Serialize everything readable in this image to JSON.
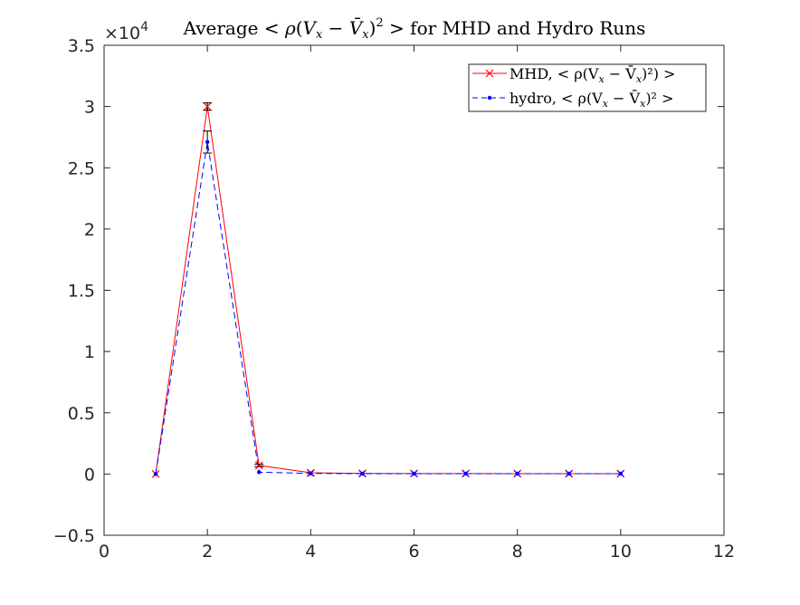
{
  "chart_data": {
    "type": "line",
    "title": "Average < ρ(V_x − V̄_x)² > for MHD and Hydro Runs",
    "title_parts": {
      "prefix": "Average <",
      "rho": "ρ",
      "open": "(",
      "V": "V",
      "sub_x": "x",
      "minus": " − ",
      "Vbar": "V̄",
      "sub_x2": "x",
      "close": ")",
      "sup2": "2",
      "suffix": " > for MHD and Hydro Runs"
    },
    "xlabel": "",
    "ylabel": "",
    "xlim": [
      0,
      12
    ],
    "ylim": [
      -0.5,
      3.5
    ],
    "y_multiplier_base": "×10",
    "y_multiplier_exp": "4",
    "x_ticks": [
      0,
      2,
      4,
      6,
      8,
      10,
      12
    ],
    "x_tick_labels": [
      "0",
      "2",
      "4",
      "6",
      "8",
      "10",
      "12"
    ],
    "y_ticks": [
      -0.5,
      0,
      0.5,
      1,
      1.5,
      2,
      2.5,
      3,
      3.5
    ],
    "y_tick_labels": [
      "−0.5",
      "0",
      "0.5",
      "1",
      "1.5",
      "2",
      "2.5",
      "3",
      "3.5"
    ],
    "grid": false,
    "legend_position": "top-right",
    "x": [
      1,
      2,
      3,
      4,
      5,
      6,
      7,
      8,
      9,
      10
    ],
    "series": [
      {
        "name": "MHD, < ρ(V_x − V̄_x)²) >",
        "legend_text": "MHD, < ρ(V",
        "legend_sub": "x",
        "legend_mid": " − V̄",
        "legend_sub2": "x",
        "legend_end": ")²) >",
        "color": "#ff0000",
        "line_style": "solid",
        "marker": "x",
        "values": [
          0,
          3.0,
          0.07,
          0.01,
          0.005,
          0.004,
          0.004,
          0.003,
          0.003,
          0.003
        ],
        "error": [
          0,
          0.03,
          0.01,
          0,
          0,
          0,
          0,
          0,
          0,
          0
        ]
      },
      {
        "name": "hydro, < ρ(V_x − V̄_x)² >",
        "legend_text": "hydro, < ρ(V",
        "legend_sub": "x",
        "legend_mid": " − V̄",
        "legend_sub2": "x",
        "legend_end": ")² >",
        "color": "#0000ff",
        "line_style": "dashed",
        "marker": "point",
        "values": [
          0,
          2.71,
          0.015,
          0.005,
          0.003,
          0.003,
          0.003,
          0.003,
          0.003,
          0.003
        ],
        "error": [
          0,
          0.09,
          0.005,
          0,
          0,
          0,
          0,
          0,
          0,
          0
        ]
      }
    ]
  }
}
